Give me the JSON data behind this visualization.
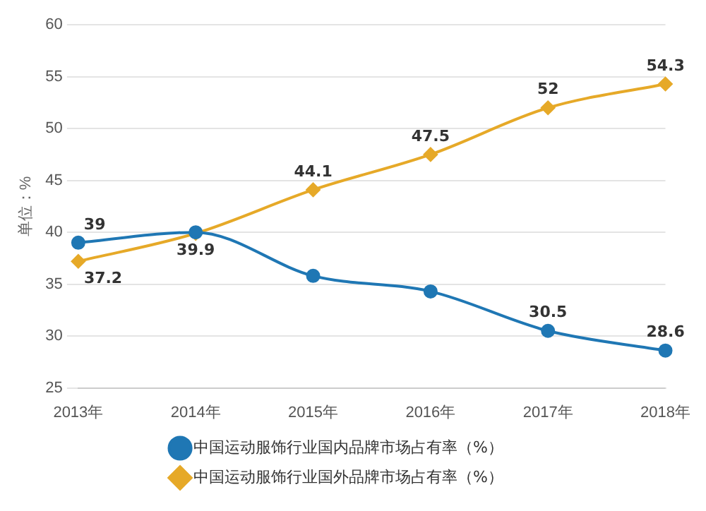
{
  "chart_data": {
    "type": "line",
    "ylabel": "单位：%",
    "categories": [
      "2013年",
      "2014年",
      "2015年",
      "2016年",
      "2017年",
      "2018年"
    ],
    "series": [
      {
        "name": "中国运动服饰行业国内品牌市场占有率（%）",
        "color": "#1f77b4",
        "marker": "circle",
        "values": [
          39,
          40,
          35.8,
          34.3,
          30.5,
          28.6
        ],
        "value_labels": [
          "39",
          null,
          null,
          null,
          "30.5",
          "28.6"
        ]
      },
      {
        "name": "中国运动服饰行业国外品牌市场占有率（%）",
        "color": "#e6a928",
        "marker": "diamond",
        "values": [
          37.2,
          39.9,
          44.1,
          47.5,
          52,
          54.3
        ],
        "value_labels": [
          "37.2",
          "39.9",
          "44.1",
          "47.5",
          "52",
          "54.3"
        ]
      }
    ],
    "ylim": [
      25,
      60
    ],
    "yticks": [
      25,
      30,
      35,
      40,
      45,
      50,
      55,
      60
    ],
    "grid": "y",
    "legend": "bottom"
  }
}
